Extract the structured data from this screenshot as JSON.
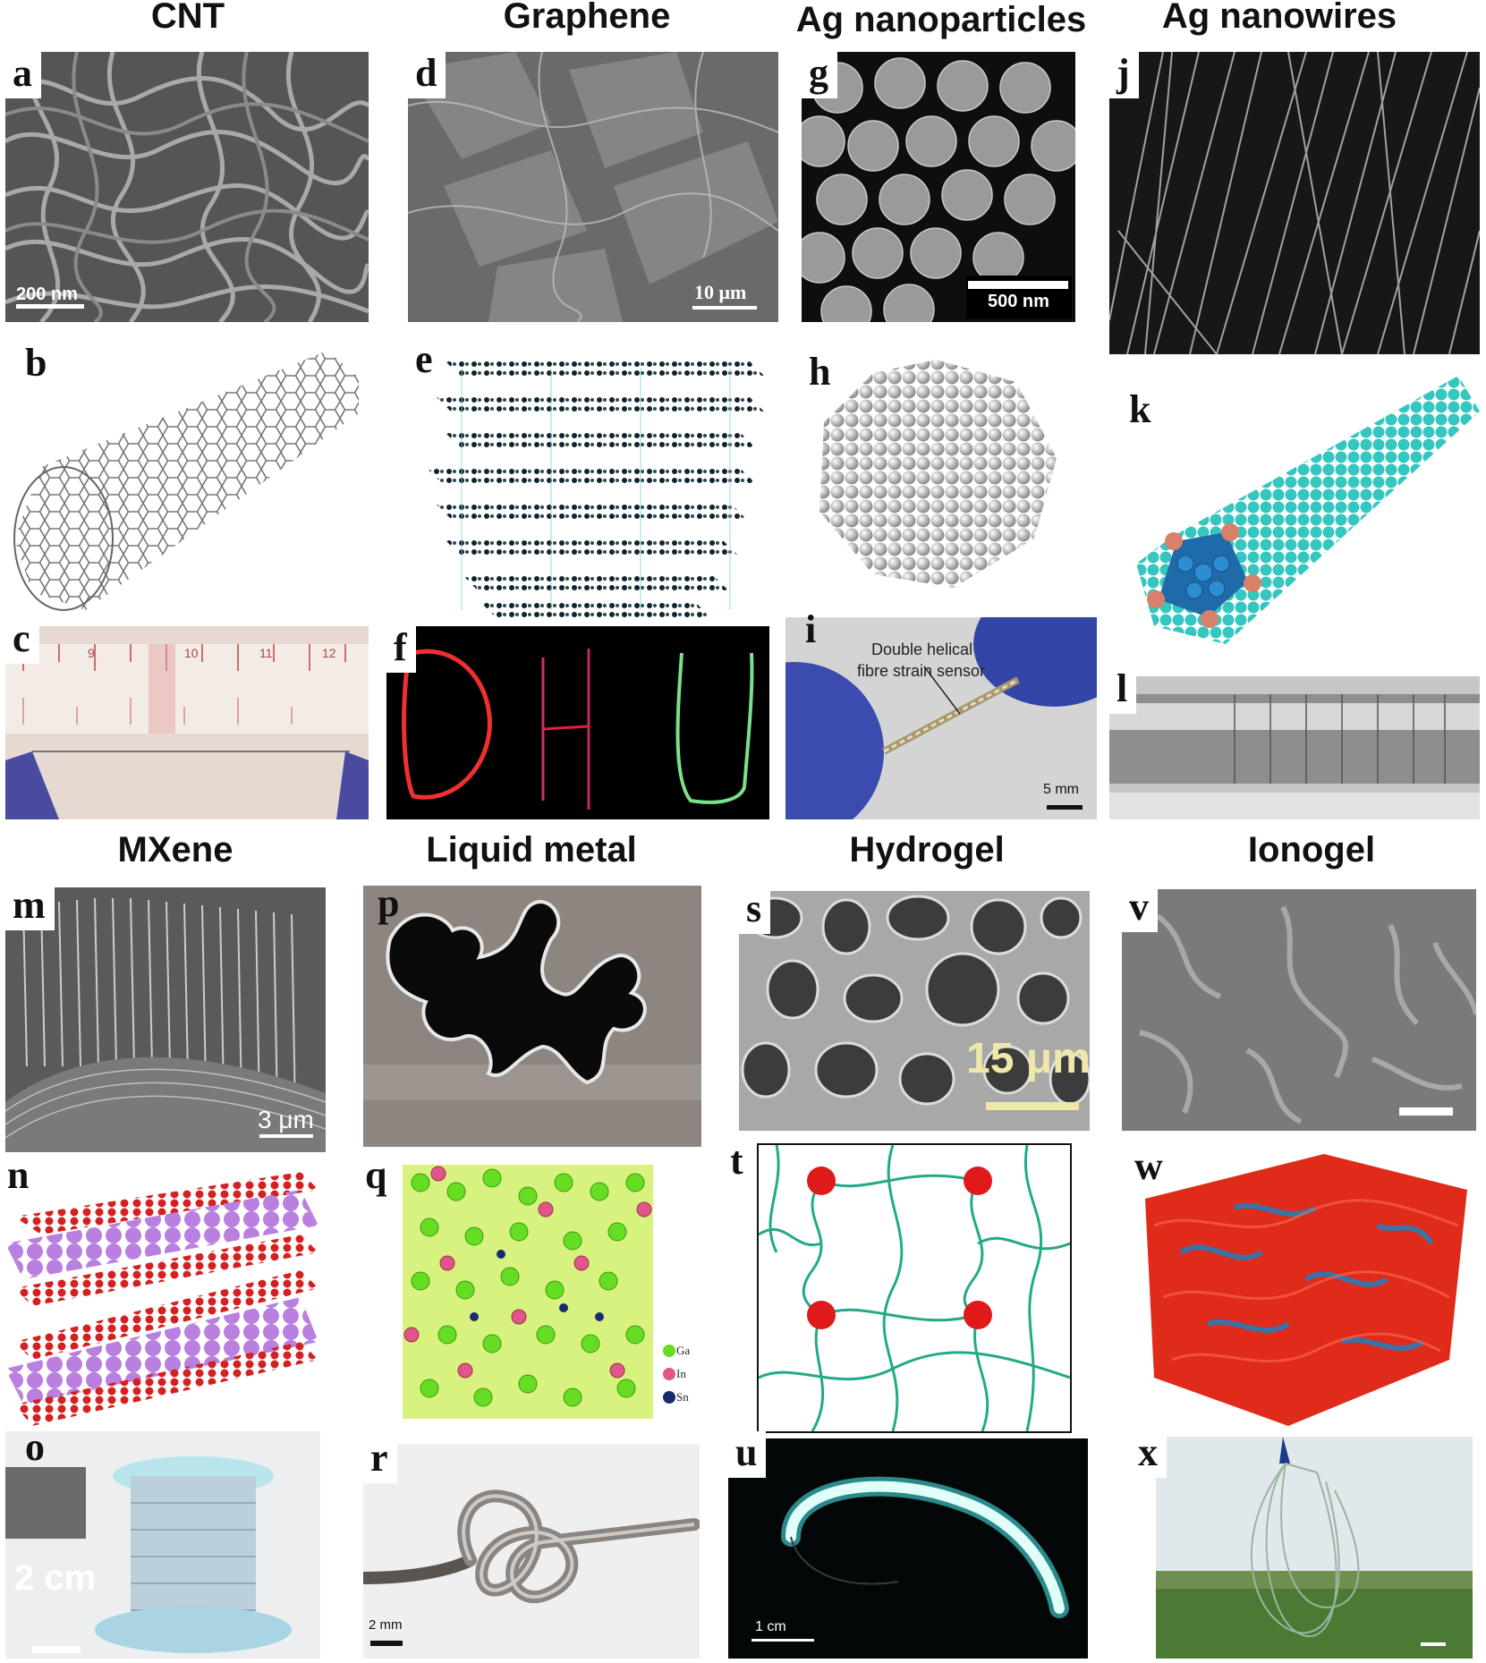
{
  "columns_top": [
    "CNT",
    "Graphene",
    "Ag nanoparticles",
    "Ag nanowires"
  ],
  "columns_bottom": [
    "MXene",
    "Liquid metal",
    "Hydrogel",
    "Ionogel"
  ],
  "letters": {
    "a": "a",
    "b": "b",
    "c": "c",
    "d": "d",
    "e": "e",
    "f": "f",
    "g": "g",
    "h": "h",
    "i": "i",
    "j": "j",
    "k": "k",
    "l": "l",
    "m": "m",
    "n": "n",
    "o": "o",
    "p": "p",
    "q": "q",
    "r": "r",
    "s": "s",
    "t": "t",
    "u": "u",
    "v": "v",
    "w": "w",
    "x": "x"
  },
  "scale_bars": {
    "a": "200 nm",
    "d": "10 μm",
    "g": "500 nm",
    "i": "5 mm",
    "m": "3 μm",
    "s": "15 μm",
    "o": "2 cm",
    "r": "2 mm",
    "u": "1 cm"
  },
  "annotations": {
    "i_line1": "Double helical",
    "i_line2": "fibre strain sensor"
  },
  "legend_q": [
    "Ga",
    "In",
    "Sn"
  ],
  "ruler_c_labels": [
    "9",
    "10",
    "11",
    "12"
  ],
  "colors": {
    "q_ga": "#66dd22",
    "q_in": "#e0558a",
    "q_sn": "#1a2a6e",
    "hydrogel_chain": "#22aa88",
    "hydrogel_node": "#e01a1a",
    "ionogel_red": "#e02a1a",
    "ionogel_blue": "#2a7ab5",
    "nanowire_cyan": "#2ec4c4",
    "nanowire_tip": "#d9806a",
    "mxene_purple": "#b877e0",
    "mxene_red": "#d42020"
  }
}
